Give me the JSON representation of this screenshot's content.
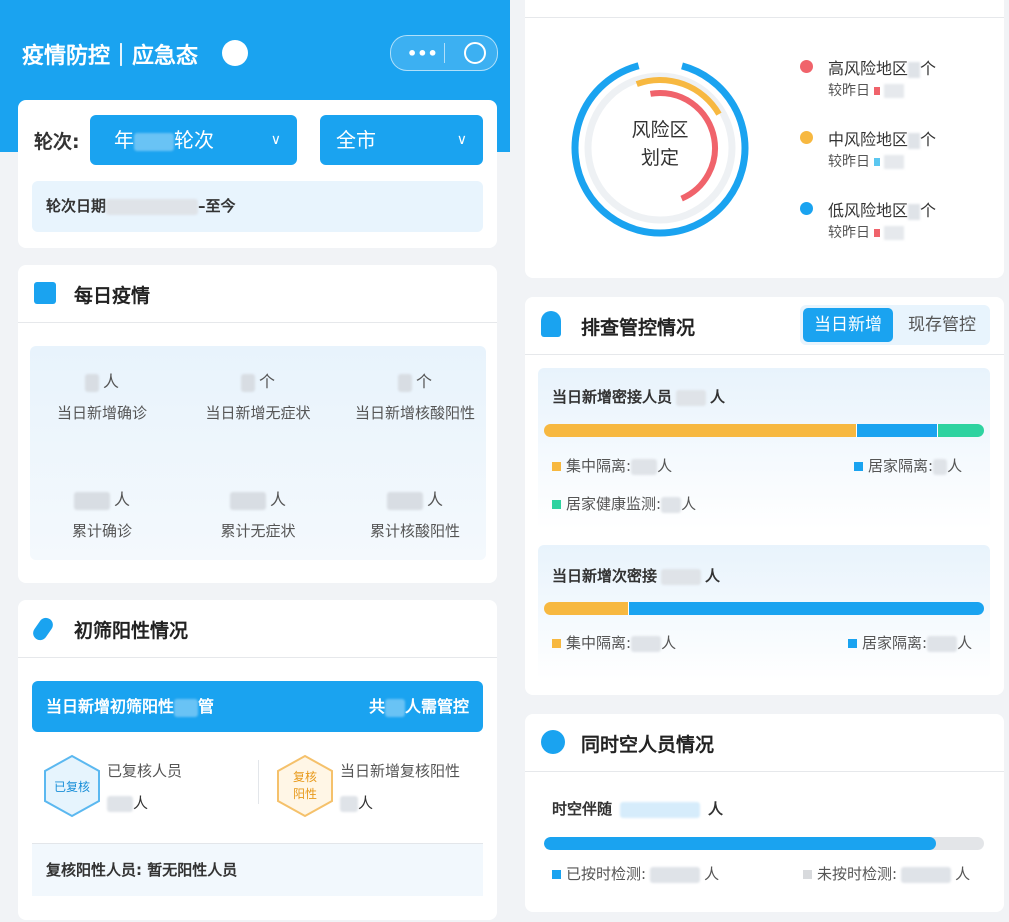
{
  "header": {
    "title": "疫情防控｜应急态"
  },
  "filters": {
    "round_label": "轮次:",
    "round_year": "年",
    "round_suffix": "轮次",
    "city": "全市",
    "date_label": "轮次日期",
    "date_suffix": "–至今"
  },
  "daily": {
    "title": "每日疫情",
    "items": [
      {
        "unit": "人",
        "label": "当日新增确诊"
      },
      {
        "unit": "个",
        "label": "当日新增无症状"
      },
      {
        "unit": "个",
        "label": "当日新增核酸阳性"
      },
      {
        "unit": "人",
        "label": "累计确诊"
      },
      {
        "unit": "人",
        "label": "累计无症状"
      },
      {
        "unit": "人",
        "label": "累计核酸阳性"
      }
    ]
  },
  "screening": {
    "title": "初筛阳性情况",
    "banner_left": "当日新增初筛阳性",
    "banner_left_unit": "管",
    "banner_right_prefix": "共",
    "banner_right_suffix": "人需管控",
    "badge1": "已复核",
    "badge2_line1": "复核",
    "badge2_line2": "阳性",
    "item1_label": "已复核人员",
    "item1_unit": "人",
    "item2_label": "当日新增复核阳性",
    "item2_unit": "人",
    "footer_label": "复核阳性人员:",
    "footer_value": "暂无阳性人员"
  },
  "risk": {
    "center_line1": "风险区",
    "center_line2": "划定",
    "legend": [
      {
        "name": "高风险地区",
        "unit": "个",
        "compare": "较昨日"
      },
      {
        "name": "中风险地区",
        "unit": "个",
        "compare": "较昨日"
      },
      {
        "name": "低风险地区",
        "unit": "个",
        "compare": "较昨日"
      }
    ]
  },
  "check": {
    "title": "排查管控情况",
    "tabs": [
      "当日新增",
      "现存管控"
    ],
    "block1": {
      "title": "当日新增密接人员",
      "unit": "人",
      "legend": [
        {
          "label": "集中隔离:",
          "unit": "人"
        },
        {
          "label": "居家隔离:",
          "unit": "人"
        },
        {
          "label": "居家健康监测:",
          "unit": "人"
        }
      ]
    },
    "block2": {
      "title": "当日新增次密接",
      "unit": "人",
      "legend": [
        {
          "label": "集中隔离:",
          "unit": "人"
        },
        {
          "label": "居家隔离:",
          "unit": "人"
        }
      ]
    }
  },
  "spacetime": {
    "title": "同时空人员情况",
    "label": "时空伴随",
    "unit": "人",
    "legend": [
      {
        "label": "已按时检测:",
        "unit": "人"
      },
      {
        "label": "未按时检测:",
        "unit": "人"
      }
    ]
  }
}
